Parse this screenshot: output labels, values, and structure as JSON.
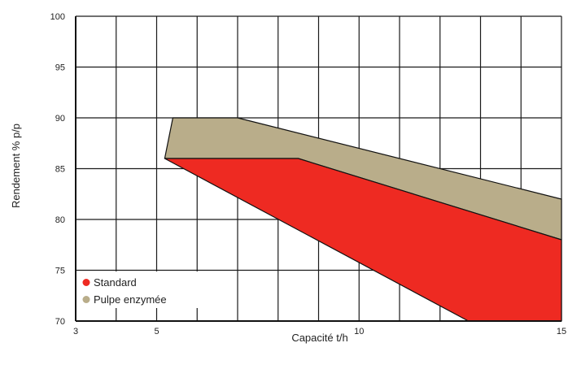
{
  "chart_data": {
    "type": "area",
    "xlabel": "Capacité t/h",
    "ylabel": "Rendement % p/p",
    "xlim": [
      3,
      15
    ],
    "ylim": [
      70,
      100
    ],
    "x_ticks": [
      3,
      5,
      10,
      15
    ],
    "x_tick_labels": [
      "3",
      "5",
      "10",
      "15"
    ],
    "y_ticks": [
      70,
      75,
      80,
      85,
      90,
      95,
      100
    ],
    "y_tick_labels": [
      "70",
      "75",
      "80",
      "85",
      "90",
      "95",
      "100"
    ],
    "x_grid": [
      3,
      4,
      5,
      6,
      7,
      8,
      9,
      10,
      11,
      12,
      13,
      14,
      15
    ],
    "y_grid": [
      70,
      75,
      80,
      85,
      90,
      95,
      100
    ],
    "grid": true,
    "legend_position": "bottom-left",
    "series": [
      {
        "name": "Pulpe enzymée",
        "color": "#b9ad8a",
        "polygon": [
          [
            5.4,
            90
          ],
          [
            7.0,
            90
          ],
          [
            15,
            82
          ],
          [
            15,
            78
          ],
          [
            8.5,
            86
          ],
          [
            5.2,
            86
          ]
        ]
      },
      {
        "name": "Standard",
        "color": "#ee2a22",
        "polygon": [
          [
            5.2,
            86
          ],
          [
            8.5,
            86
          ],
          [
            15,
            78
          ],
          [
            15,
            70
          ],
          [
            12.7,
            70
          ]
        ]
      }
    ]
  }
}
